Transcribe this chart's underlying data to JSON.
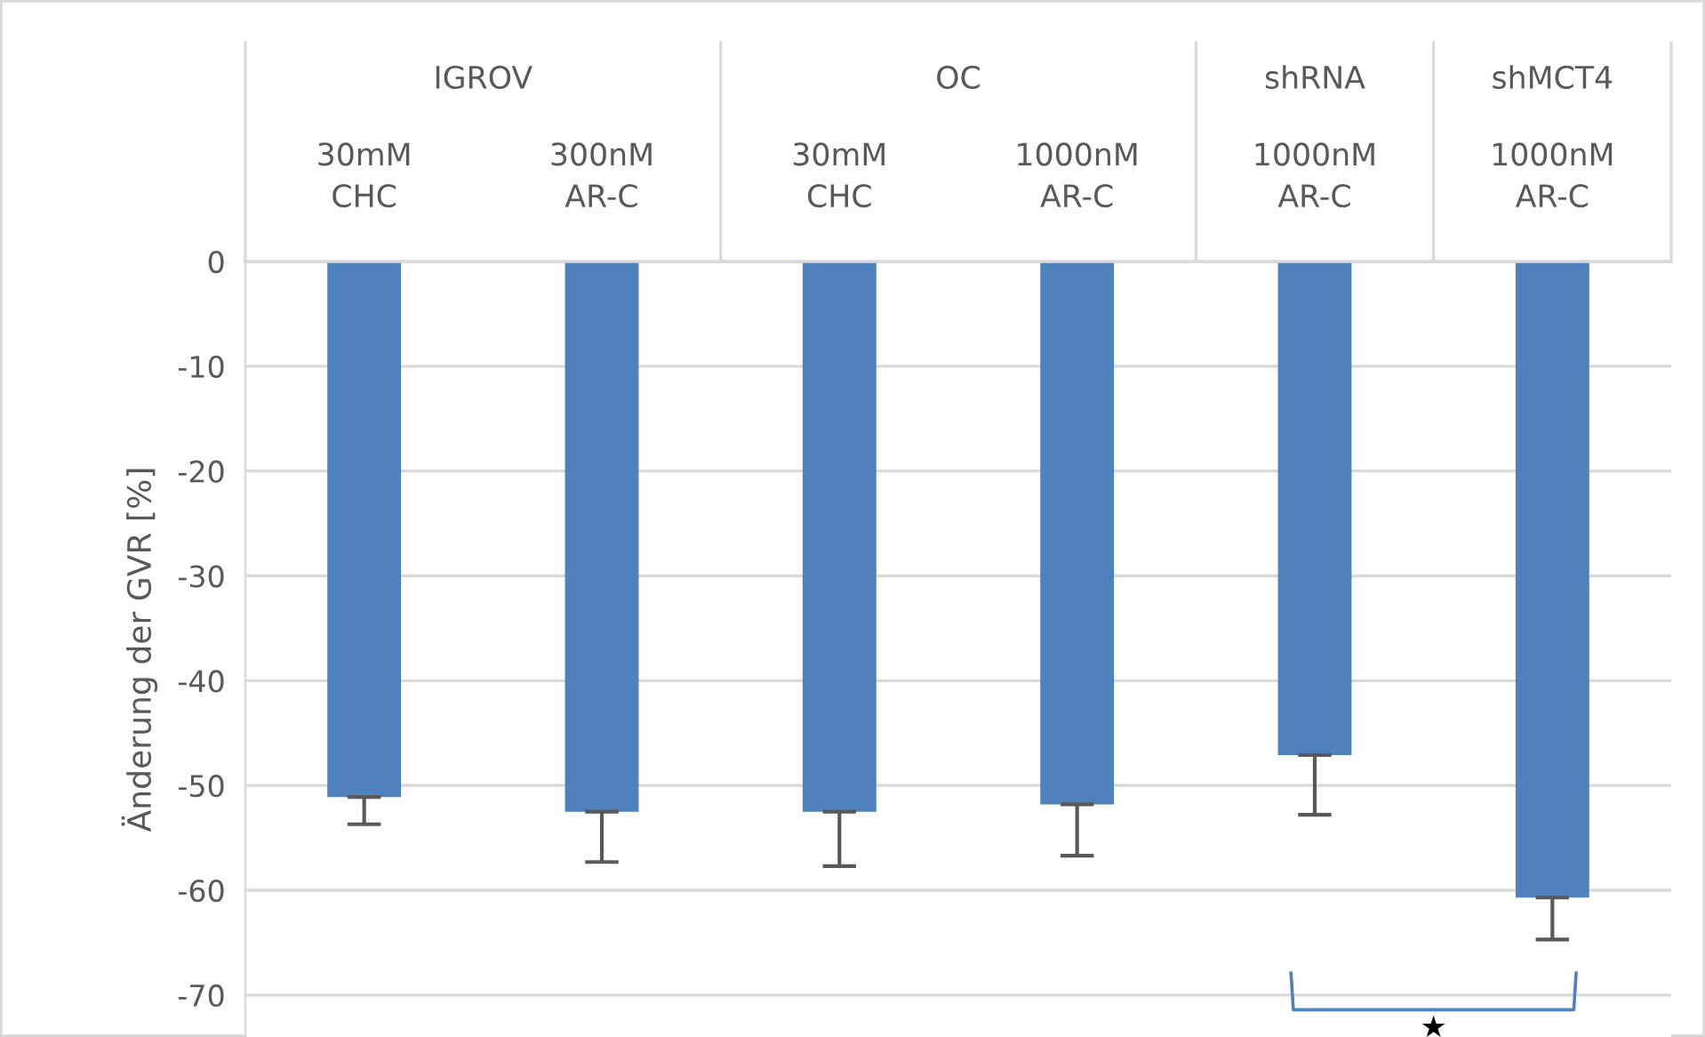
{
  "chart_data": {
    "type": "bar",
    "categories": [
      "30mM\nCHC",
      "300nM\nAR-C",
      "30mM\nCHC",
      "1000nM\nAR-C",
      "1000nM\nAR-C",
      "1000nM\nAR-C"
    ],
    "values": [
      -51.1,
      -52.5,
      -52.5,
      -51.8,
      -47.1,
      -60.7
    ],
    "errors": [
      [
        -53.7,
        -51.1
      ],
      [
        -57.3,
        -52.5
      ],
      [
        -57.7,
        -52.5
      ],
      [
        -56.7,
        -51.8
      ],
      [
        -52.8,
        -47.1
      ],
      [
        -64.7,
        -60.7
      ]
    ],
    "color": "#4f81bd",
    "ylabel": "Änderung der GVR [%]",
    "ylim": [
      -74,
      0
    ],
    "yticks": [
      0,
      -10,
      -20,
      -30,
      -40,
      -50,
      -60,
      -70
    ],
    "grid": "y",
    "annotations": [
      "IGROV",
      "OC",
      "shRNA",
      "shMCT4",
      "★"
    ]
  }
}
